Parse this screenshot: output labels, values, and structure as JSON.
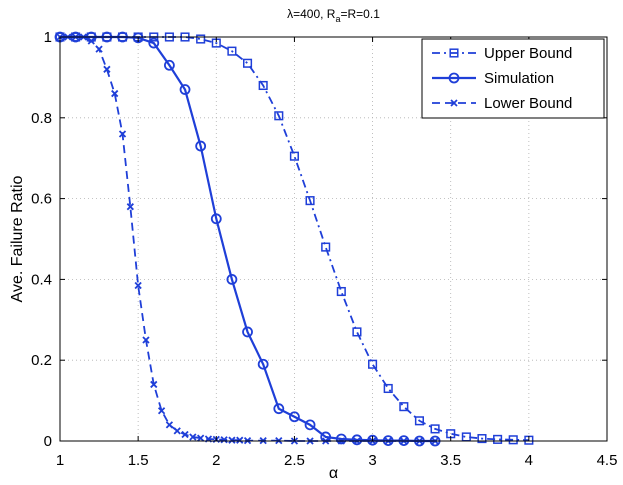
{
  "chart_data": {
    "type": "line",
    "title": "λ=400, R",
    "title_sub": "a",
    "title_tail": "=R=0.1",
    "xlabel": "α",
    "ylabel": "Ave. Failure Ratio",
    "xlim": [
      1,
      4.5
    ],
    "ylim": [
      0,
      1
    ],
    "xticks": [
      1,
      1.5,
      2,
      2.5,
      3,
      3.5,
      4,
      4.5
    ],
    "xtick_labels": [
      "1",
      "1.5",
      "2",
      "2.5",
      "3",
      "3.5",
      "4",
      "4.5"
    ],
    "yticks": [
      0,
      0.2,
      0.4,
      0.6,
      0.8,
      1
    ],
    "ytick_labels": [
      "0",
      "0.2",
      "0.4",
      "0.6",
      "0.8",
      "1"
    ],
    "grid": true,
    "legend_position": "top-right",
    "color": "#1f3fd8",
    "series": [
      {
        "name": "Upper Bound",
        "style": "dash-dot",
        "marker": "square",
        "x": [
          1.0,
          1.1,
          1.2,
          1.3,
          1.4,
          1.5,
          1.6,
          1.7,
          1.8,
          1.9,
          2.0,
          2.1,
          2.2,
          2.3,
          2.4,
          2.5,
          2.6,
          2.7,
          2.8,
          2.9,
          3.0,
          3.1,
          3.2,
          3.3,
          3.4,
          3.5,
          3.6,
          3.7,
          3.8,
          3.9,
          4.0
        ],
        "y": [
          1.0,
          1.0,
          1.0,
          1.0,
          1.0,
          1.0,
          1.0,
          1.0,
          1.0,
          0.995,
          0.985,
          0.965,
          0.935,
          0.88,
          0.805,
          0.705,
          0.595,
          0.48,
          0.37,
          0.27,
          0.19,
          0.13,
          0.085,
          0.05,
          0.03,
          0.018,
          0.01,
          0.006,
          0.004,
          0.003,
          0.002
        ]
      },
      {
        "name": "Simulation",
        "style": "solid",
        "marker": "circle",
        "x": [
          1.0,
          1.1,
          1.2,
          1.3,
          1.4,
          1.5,
          1.6,
          1.7,
          1.8,
          1.9,
          2.0,
          2.1,
          2.2,
          2.3,
          2.4,
          2.5,
          2.6,
          2.7,
          2.8,
          2.9,
          3.0,
          3.1,
          3.2,
          3.3,
          3.4
        ],
        "y": [
          1.0,
          1.0,
          1.0,
          1.0,
          1.0,
          0.998,
          0.985,
          0.93,
          0.87,
          0.73,
          0.55,
          0.4,
          0.27,
          0.19,
          0.08,
          0.06,
          0.04,
          0.01,
          0.005,
          0.003,
          0.002,
          0.001,
          0.001,
          0.0,
          0.0
        ]
      },
      {
        "name": "Lower Bound",
        "style": "dashed",
        "marker": "x",
        "x": [
          1.0,
          1.05,
          1.1,
          1.15,
          1.2,
          1.25,
          1.3,
          1.35,
          1.4,
          1.45,
          1.5,
          1.55,
          1.6,
          1.65,
          1.7,
          1.75,
          1.8,
          1.85,
          1.9,
          1.95,
          2.0,
          2.05,
          2.1,
          2.15,
          2.2,
          2.3,
          2.4,
          2.5,
          2.6,
          2.7,
          2.8,
          2.9,
          3.0,
          3.1,
          3.2,
          3.3,
          3.4
        ],
        "y": [
          1.0,
          1.0,
          1.0,
          1.0,
          0.99,
          0.97,
          0.92,
          0.86,
          0.76,
          0.58,
          0.385,
          0.25,
          0.14,
          0.075,
          0.04,
          0.025,
          0.016,
          0.01,
          0.007,
          0.005,
          0.004,
          0.003,
          0.002,
          0.002,
          0.001,
          0.001,
          0.001,
          0.0,
          0.0,
          0.0,
          0.0,
          0.0,
          0.0,
          0.0,
          0.0,
          0.0,
          0.0
        ]
      }
    ]
  }
}
